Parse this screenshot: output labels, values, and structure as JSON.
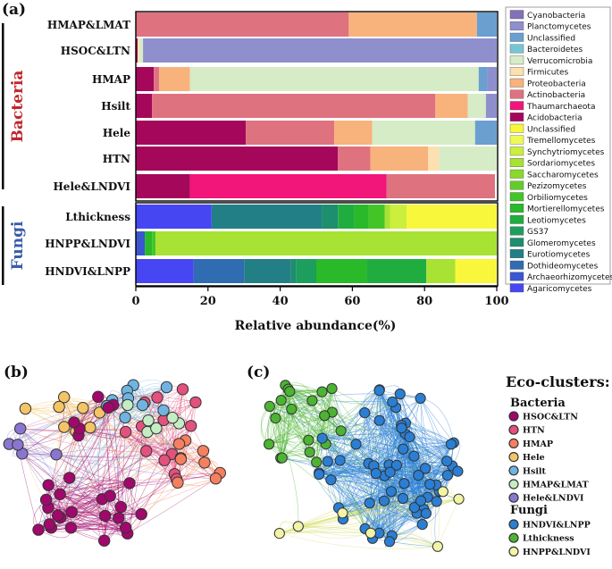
{
  "panel_labels": {
    "a": "(a)",
    "b": "(b)",
    "c": "(c)"
  },
  "chart_data": {
    "type": "bar",
    "orientation": "horizontal",
    "stacked": true,
    "title": "",
    "xlabel": "Relative abundance(%)",
    "ylabel": "",
    "xlim": [
      0,
      100
    ],
    "xticks": [
      "0",
      "20",
      "40",
      "60",
      "80",
      "100"
    ],
    "groups": [
      {
        "name": "Bacteria",
        "color": "#c0272d"
      },
      {
        "name": "Fungi",
        "color": "#3a5ca8"
      }
    ],
    "bacteria_taxa": [
      {
        "name": "Cyanobacteria",
        "color": "#8470b8"
      },
      {
        "name": "Planctomycetes",
        "color": "#8f8fce"
      },
      {
        "name": "Unclassified",
        "color": "#6a9fd0"
      },
      {
        "name": "Bacteroidetes",
        "color": "#74c6d4"
      },
      {
        "name": "Verrucomicrobia",
        "color": "#d6ecc6"
      },
      {
        "name": "Firmicutes",
        "color": "#fde0b0"
      },
      {
        "name": "Proteobacteria",
        "color": "#f8b27c"
      },
      {
        "name": "Actinobacteria",
        "color": "#df727f"
      },
      {
        "name": "Thaumarchaeota",
        "color": "#f2157a"
      },
      {
        "name": "Acidobacteria",
        "color": "#a5075a"
      }
    ],
    "fungi_taxa": [
      {
        "name": "Unclassified",
        "color": "#f9f73b"
      },
      {
        "name": "Tremellomycetes",
        "color": "#eefb55"
      },
      {
        "name": "Synchytriomycetes",
        "color": "#ccee3c"
      },
      {
        "name": "Sordariomycetes",
        "color": "#a8e232"
      },
      {
        "name": "Saccharomycetes",
        "color": "#8ad82b"
      },
      {
        "name": "Pezizomycetes",
        "color": "#62cd28"
      },
      {
        "name": "Orbiliomycetes",
        "color": "#44c527"
      },
      {
        "name": "Mortierellomycetes",
        "color": "#29b929"
      },
      {
        "name": "Leotiomycetes",
        "color": "#20ad40"
      },
      {
        "name": "GS37",
        "color": "#1e9e5c"
      },
      {
        "name": "Glomeromycetes",
        "color": "#1d8e6e"
      },
      {
        "name": "Eurotiomycetes",
        "color": "#237f86"
      },
      {
        "name": "Dothideomycetes",
        "color": "#2f6cb2"
      },
      {
        "name": "Archaeorhizomycetes",
        "color": "#3a56d0"
      },
      {
        "name": "Agaricomycetes",
        "color": "#4646f3"
      }
    ],
    "series_rows": [
      {
        "label": "HMAP&LMAT",
        "group": "Bacteria",
        "segments": [
          {
            "taxon": "Actinobacteria",
            "value": 59
          },
          {
            "taxon": "Proteobacteria",
            "value": 35.5
          },
          {
            "taxon": "Unclassified",
            "value": 5.5
          }
        ]
      },
      {
        "label": "HSOC&LTN",
        "group": "Bacteria",
        "segments": [
          {
            "taxon": "Acidobacteria",
            "value": 0.5
          },
          {
            "taxon": "Firmicutes",
            "value": 0.5
          },
          {
            "taxon": "Verrucomicrobia",
            "value": 1
          },
          {
            "taxon": "Planctomycetes",
            "value": 98
          }
        ]
      },
      {
        "label": "HMAP",
        "group": "Bacteria",
        "segments": [
          {
            "taxon": "Acidobacteria",
            "value": 5
          },
          {
            "taxon": "Actinobacteria",
            "value": 1.5
          },
          {
            "taxon": "Proteobacteria",
            "value": 8.5
          },
          {
            "taxon": "Verrucomicrobia",
            "value": 80
          },
          {
            "taxon": "Unclassified",
            "value": 2.5
          },
          {
            "taxon": "Planctomycetes",
            "value": 2.5
          }
        ]
      },
      {
        "label": "Hsilt",
        "group": "Bacteria",
        "segments": [
          {
            "taxon": "Acidobacteria",
            "value": 4.5
          },
          {
            "taxon": "Actinobacteria",
            "value": 78.5
          },
          {
            "taxon": "Proteobacteria",
            "value": 9
          },
          {
            "taxon": "Verrucomicrobia",
            "value": 5
          },
          {
            "taxon": "Planctomycetes",
            "value": 3
          }
        ]
      },
      {
        "label": "Hele",
        "group": "Bacteria",
        "segments": [
          {
            "taxon": "Acidobacteria",
            "value": 30.5
          },
          {
            "taxon": "Actinobacteria",
            "value": 24.5
          },
          {
            "taxon": "Proteobacteria",
            "value": 10.5
          },
          {
            "taxon": "Verrucomicrobia",
            "value": 28.5
          },
          {
            "taxon": "Unclassified",
            "value": 6
          }
        ]
      },
      {
        "label": "HTN",
        "group": "Bacteria",
        "segments": [
          {
            "taxon": "Acidobacteria",
            "value": 56
          },
          {
            "taxon": "Actinobacteria",
            "value": 9
          },
          {
            "taxon": "Proteobacteria",
            "value": 16
          },
          {
            "taxon": "Firmicutes",
            "value": 3
          },
          {
            "taxon": "Verrucomicrobia",
            "value": 16
          }
        ]
      },
      {
        "label": "Hele&LNDVI",
        "group": "Bacteria",
        "segments": [
          {
            "taxon": "Acidobacteria",
            "value": 15
          },
          {
            "taxon": "Thaumarchaeota",
            "value": 54.5
          },
          {
            "taxon": "Actinobacteria",
            "value": 30
          }
        ]
      },
      {
        "label": "Lthickness",
        "group": "Fungi",
        "segments": [
          {
            "taxon": "Agaricomycetes",
            "value": 21
          },
          {
            "taxon": "Eurotiomycetes",
            "value": 30.5
          },
          {
            "taxon": "Glomeromycetes",
            "value": 4.5
          },
          {
            "taxon": "Leotiomycetes",
            "value": 4.5
          },
          {
            "taxon": "Mortierellomycetes",
            "value": 4
          },
          {
            "taxon": "Orbiliomycetes",
            "value": 4.5
          },
          {
            "taxon": "Sordariomycetes",
            "value": 1.5
          },
          {
            "taxon": "Synchytriomycetes",
            "value": 4.5
          },
          {
            "taxon": "Unclassified",
            "value": 25
          }
        ]
      },
      {
        "label": "HNPP&LNDVI",
        "group": "Fungi",
        "segments": [
          {
            "taxon": "Archaeorhizomycetes",
            "value": 2.5
          },
          {
            "taxon": "Mortierellomycetes",
            "value": 2
          },
          {
            "taxon": "Orbiliomycetes",
            "value": 1
          },
          {
            "taxon": "Sordariomycetes",
            "value": 94.5
          }
        ]
      },
      {
        "label": "HNDVI&LNPP",
        "group": "Fungi",
        "segments": [
          {
            "taxon": "Agaricomycetes",
            "value": 16
          },
          {
            "taxon": "Dothideomycetes",
            "value": 14
          },
          {
            "taxon": "Eurotiomycetes",
            "value": 13
          },
          {
            "taxon": "Glomeromycetes",
            "value": 1.5
          },
          {
            "taxon": "GS37",
            "value": 5.5
          },
          {
            "taxon": "Mortierellomycetes",
            "value": 14
          },
          {
            "taxon": "Leotiomycetes",
            "value": 16.5
          },
          {
            "taxon": "Sordariomycetes",
            "value": 8
          },
          {
            "taxon": "Unclassified",
            "value": 11.5
          }
        ]
      }
    ]
  },
  "eco_legend": {
    "title": "Eco-clusters:",
    "bacteria_heading": "Bacteria",
    "bacteria": [
      {
        "name": "HSOC&LTN",
        "color": "#a0086c"
      },
      {
        "name": "HTN",
        "color": "#e3517d"
      },
      {
        "name": "HMAP",
        "color": "#f48060"
      },
      {
        "name": "Hele",
        "color": "#f4c466"
      },
      {
        "name": "Hsilt",
        "color": "#6fb4e0"
      },
      {
        "name": "HMAP&LMAT",
        "color": "#c4edc4"
      },
      {
        "name": "Hele&LNDVI",
        "color": "#8a76d0"
      }
    ],
    "fungi_heading": "Fungi",
    "fungi": [
      {
        "name": "HNDVI&LNPP",
        "color": "#2a7fd4"
      },
      {
        "name": "Lthickness",
        "color": "#4cb432"
      },
      {
        "name": "HNPP&LNDVI",
        "color": "#f2f4a6"
      }
    ]
  }
}
